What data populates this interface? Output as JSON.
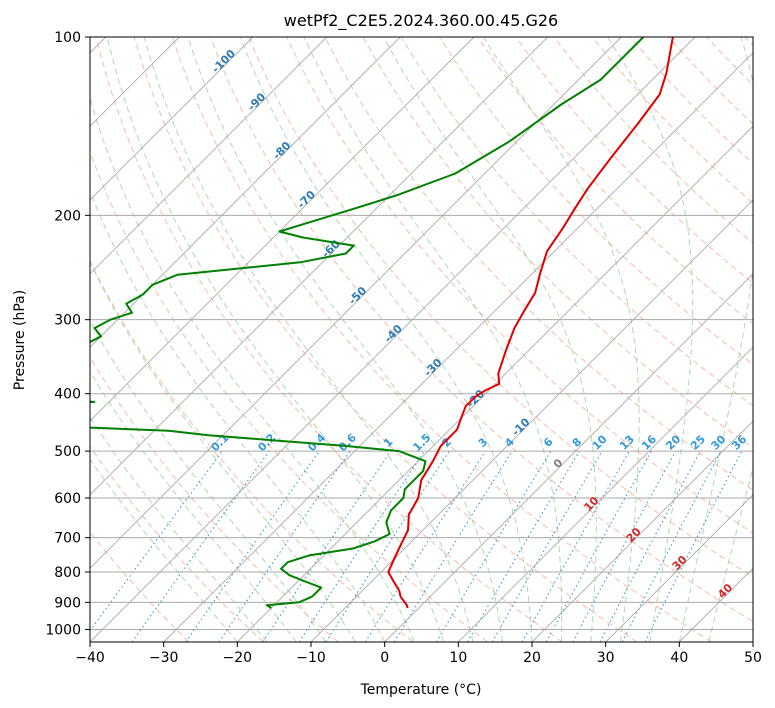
{
  "chart_data": {
    "type": "line",
    "title": "wetPf2_C2E5.2024.360.00.45.G26",
    "xlabel": "Temperature (°C)",
    "ylabel": "Pressure (hPa)",
    "xlim": [
      -40,
      50
    ],
    "ylim": [
      1050,
      100
    ],
    "y_scale": "log",
    "skew": "skew-T",
    "grid": true,
    "x_ticks": [
      "−40",
      "−30",
      "−20",
      "−10",
      "0",
      "10",
      "20",
      "30",
      "40",
      "50"
    ],
    "y_ticks": [
      "100",
      "200",
      "300",
      "400",
      "500",
      "600",
      "700",
      "800",
      "900",
      "1000"
    ],
    "colors": {
      "temperature": "#e00000",
      "dewpoint": "#008000",
      "isotherm": "#aaaaaa",
      "dry_adiabat": "#f5a48a",
      "moist_adiabat": "#8cc98c",
      "mixing_ratio": "#3399dd",
      "isotherm_label": "#2c7bb6",
      "dry_adiabat_label": "#d62728",
      "moist_adiabat_label": "#808080"
    },
    "isotherm_labels": [
      {
        "text": "-100",
        "t": -100,
        "p": 111
      },
      {
        "text": "-90",
        "t": -90,
        "p": 130
      },
      {
        "text": "-80",
        "t": -80,
        "p": 157
      },
      {
        "text": "-70",
        "t": -70,
        "p": 190
      },
      {
        "text": "-60",
        "t": -60,
        "p": 230
      },
      {
        "text": "-50",
        "t": -50,
        "p": 276
      },
      {
        "text": "-40",
        "t": -40,
        "p": 320
      },
      {
        "text": "-30",
        "t": -30,
        "p": 365
      },
      {
        "text": "-20",
        "t": -20,
        "p": 412
      },
      {
        "text": "-10",
        "t": -10,
        "p": 460
      }
    ],
    "mixing_ratio_labels": [
      "0.1",
      "0.2",
      "0.4",
      "0.6",
      "1",
      "1.5",
      "2",
      "3",
      "4",
      "6",
      "8",
      "10",
      "13",
      "16",
      "20",
      "25",
      "30",
      "36"
    ],
    "mixing_ratio_values": [
      0.1,
      0.2,
      0.4,
      0.6,
      1,
      1.5,
      2,
      3,
      4,
      6,
      8,
      10,
      13,
      16,
      20,
      25,
      30,
      36
    ],
    "dry_adiabat_labels": [
      {
        "text": "10",
        "t": 10,
        "p": 620
      },
      {
        "text": "20",
        "t": 20,
        "p": 700
      },
      {
        "text": "30",
        "t": 30,
        "p": 780
      },
      {
        "text": "40",
        "t": 40,
        "p": 870
      }
    ],
    "moist_adiabat_labels": [
      {
        "text": "0",
        "t": 0,
        "p": 530
      }
    ],
    "series": [
      {
        "key": "temperature",
        "p": [
          100,
          115,
          125,
          140,
          160,
          180,
          195,
          210,
          230,
          250,
          270,
          290,
          310,
          340,
          370,
          385,
          395,
          405,
          420,
          440,
          460,
          490,
          520,
          560,
          600,
          640,
          680,
          720,
          760,
          800,
          830,
          860,
          880,
          910,
          920
        ],
        "t": [
          -43,
          -39,
          -37,
          -36,
          -35,
          -34,
          -33,
          -32,
          -31,
          -29,
          -27,
          -26,
          -25,
          -23,
          -21,
          -19.5,
          -20.5,
          -21,
          -21,
          -20,
          -19,
          -19,
          -18,
          -17,
          -15,
          -14,
          -12,
          -11,
          -10,
          -9,
          -7,
          -5,
          -4,
          -2,
          -1.5
        ]
      },
      {
        "key": "dewpoint",
        "p": [
          100,
          118,
          130,
          150,
          170,
          185,
          195,
          205,
          213,
          218,
          225,
          232,
          240,
          252,
          262,
          272,
          282,
          292,
          300,
          310,
          320,
          340,
          360,
          375,
          390,
          400,
          408,
          413,
          418,
          425,
          432,
          440,
          448,
          455,
          462,
          470,
          480,
          490,
          500,
          520,
          540,
          560,
          580,
          600,
          630,
          660,
          690,
          710,
          730,
          750,
          770,
          790,
          810,
          830,
          850,
          880,
          900,
          910,
          920
        ],
        "t": [
          -47,
          -47,
          -49,
          -51,
          -54,
          -59,
          -63,
          -67,
          -70,
          -66,
          -58,
          -58,
          -63,
          -78,
          -80,
          -80,
          -81,
          -79,
          -81,
          -82,
          -80,
          -82,
          -83,
          -85,
          -85,
          -82,
          -78,
          -72,
          -80,
          -84,
          -87,
          -86,
          -82,
          -72,
          -58,
          -52,
          -42,
          -32,
          -24,
          -19,
          -18,
          -18,
          -18,
          -17,
          -17,
          -16,
          -14,
          -15,
          -17,
          -22,
          -24,
          -24,
          -22,
          -19,
          -16,
          -16,
          -17,
          -21,
          -20
        ]
      }
    ]
  }
}
